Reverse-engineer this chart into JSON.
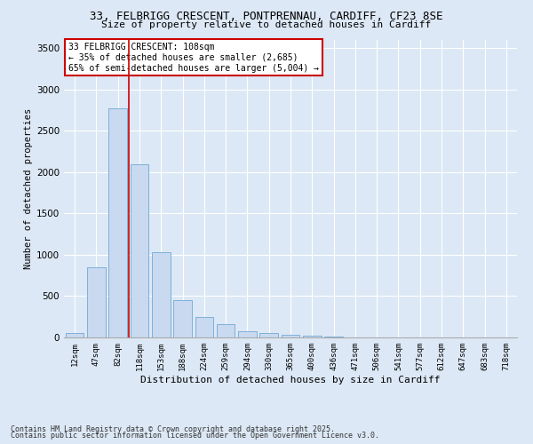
{
  "title": "33, FELBRIGG CRESCENT, PONTPRENNAU, CARDIFF, CF23 8SE",
  "subtitle": "Size of property relative to detached houses in Cardiff",
  "xlabel": "Distribution of detached houses by size in Cardiff",
  "ylabel": "Number of detached properties",
  "categories": [
    "12sqm",
    "47sqm",
    "82sqm",
    "118sqm",
    "153sqm",
    "188sqm",
    "224sqm",
    "259sqm",
    "294sqm",
    "330sqm",
    "365sqm",
    "400sqm",
    "436sqm",
    "471sqm",
    "506sqm",
    "541sqm",
    "577sqm",
    "612sqm",
    "647sqm",
    "683sqm",
    "718sqm"
  ],
  "values": [
    50,
    850,
    2775,
    2100,
    1030,
    450,
    250,
    160,
    70,
    50,
    35,
    20,
    10,
    5,
    3,
    2,
    1,
    1,
    0,
    0,
    0
  ],
  "bar_color": "#c9d9f0",
  "bar_edge_color": "#6fa8d6",
  "vline_color": "#cc0000",
  "annotation_text": "33 FELBRIGG CRESCENT: 108sqm\n← 35% of detached houses are smaller (2,685)\n65% of semi-detached houses are larger (5,004) →",
  "annotation_box_color": "#cc0000",
  "ylim": [
    0,
    3600
  ],
  "yticks": [
    0,
    500,
    1000,
    1500,
    2000,
    2500,
    3000,
    3500
  ],
  "bg_color": "#dce8f5",
  "plot_bg_color": "#dce8f5",
  "grid_color": "#ffffff",
  "footer_line1": "Contains HM Land Registry data © Crown copyright and database right 2025.",
  "footer_line2": "Contains public sector information licensed under the Open Government Licence v3.0."
}
